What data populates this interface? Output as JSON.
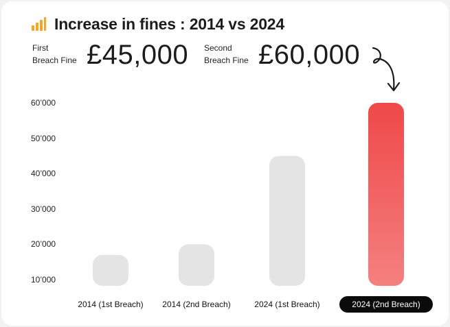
{
  "title": "Increase in fines : 2014 vs 2024",
  "title_icon": "bar-chart-icon",
  "stats": {
    "first_label_line1": "First",
    "first_label_line2": "Breach Fine",
    "first_value": "£45,000",
    "second_label_line1": "Second",
    "second_label_line2": "Breach Fine",
    "second_value": "£60,000"
  },
  "colors": {
    "accent": "#f04848",
    "accent_light": "#f48080",
    "bar_neutral": "#e4e4e4",
    "icon": "#f5a623"
  },
  "chart_data": {
    "type": "bar",
    "title": "Increase in fines : 2014 vs 2024",
    "categories": [
      "2014 (1st Breach)",
      "2014 (2nd Breach)",
      "2024 (1st Breach)",
      "2024 (2nd Breach)"
    ],
    "values": [
      17000,
      20000,
      45000,
      60000
    ],
    "highlighted_category": "2024 (2nd Breach)",
    "yticks": [
      "60’000",
      "50’000",
      "40’000",
      "30’000",
      "20’000",
      "10’000"
    ],
    "ytick_values": [
      60000,
      50000,
      40000,
      30000,
      20000,
      10000
    ],
    "ylim": [
      0,
      60000
    ],
    "grid": false,
    "legend": "none"
  }
}
